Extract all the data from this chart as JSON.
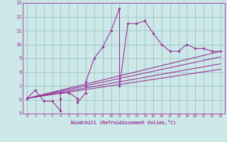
{
  "xlabel": "Windchill (Refroidissement éolien,°C)",
  "bg_color": "#cce8e8",
  "line_color": "#993399",
  "grid_color": "#99bbbb",
  "xlim": [
    -0.5,
    23.5
  ],
  "ylim": [
    5,
    13
  ],
  "xticks": [
    0,
    1,
    2,
    3,
    4,
    5,
    6,
    7,
    8,
    9,
    10,
    11,
    12,
    13,
    14,
    15,
    16,
    17,
    18,
    19,
    20,
    21,
    22,
    23
  ],
  "yticks": [
    5,
    6,
    7,
    8,
    9,
    10,
    11,
    12,
    13
  ],
  "series": [
    [
      0,
      6.1
    ],
    [
      1,
      6.7
    ],
    [
      2,
      5.9
    ],
    [
      3,
      5.9
    ],
    [
      4,
      5.2
    ],
    [
      4,
      6.1
    ],
    [
      4,
      6.5
    ],
    [
      5,
      6.5
    ],
    [
      6,
      6.1
    ],
    [
      6,
      5.8
    ],
    [
      7,
      6.5
    ],
    [
      7,
      7.0
    ],
    [
      7,
      7.3
    ],
    [
      8,
      9.0
    ],
    [
      9,
      9.8
    ],
    [
      10,
      11.0
    ],
    [
      11,
      12.6
    ],
    [
      11,
      7.0
    ],
    [
      12,
      11.5
    ],
    [
      13,
      11.5
    ],
    [
      14,
      11.7
    ],
    [
      15,
      10.8
    ],
    [
      16,
      10.0
    ],
    [
      17,
      9.5
    ],
    [
      18,
      9.5
    ],
    [
      19,
      10.0
    ],
    [
      20,
      9.7
    ],
    [
      21,
      9.7
    ],
    [
      22,
      9.5
    ],
    [
      23,
      9.5
    ]
  ],
  "regression_lines": [
    {
      "x": [
        0,
        23
      ],
      "y": [
        6.1,
        9.5
      ]
    },
    {
      "x": [
        0,
        23
      ],
      "y": [
        6.1,
        9.1
      ]
    },
    {
      "x": [
        0,
        23
      ],
      "y": [
        6.1,
        8.6
      ]
    },
    {
      "x": [
        0,
        23
      ],
      "y": [
        6.1,
        8.2
      ]
    }
  ]
}
